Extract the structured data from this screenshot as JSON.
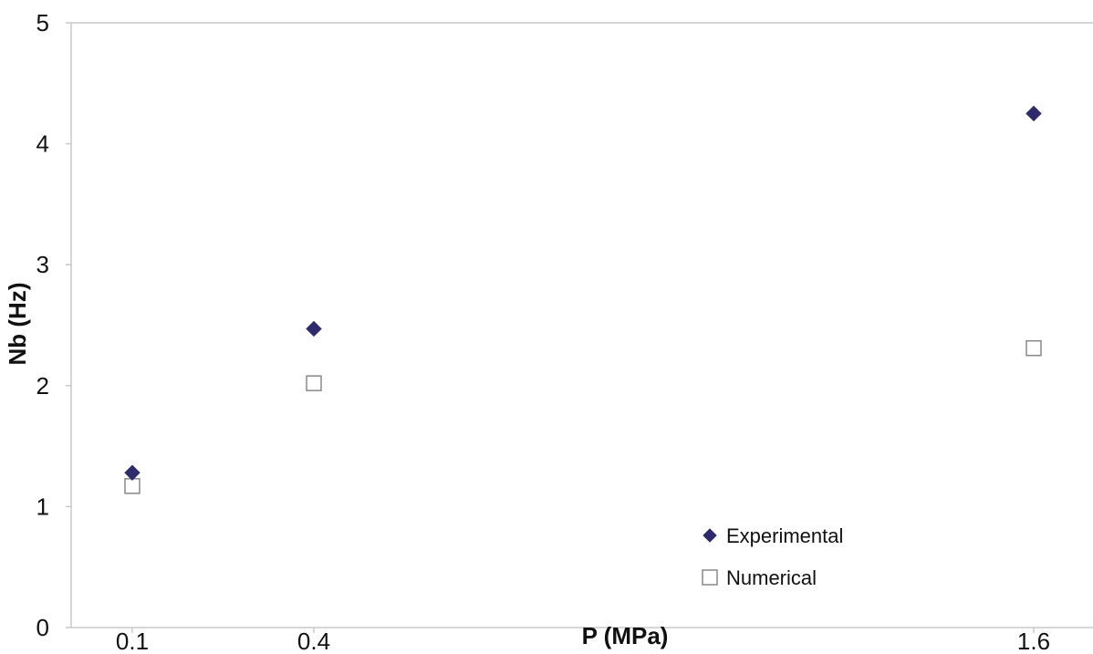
{
  "chart_data": {
    "type": "scatter",
    "title": "",
    "xlabel": "P (MPa)",
    "ylabel": "Nb (Hz)",
    "x_categories": [
      "0.1",
      "0.4",
      "1.6"
    ],
    "ylim": [
      0,
      5
    ],
    "y_ticks": [
      "0",
      "1",
      "2",
      "3",
      "4",
      "5"
    ],
    "grid": false,
    "legend_position": "bottom-center",
    "series": [
      {
        "name": "Experimental",
        "marker": "filled-diamond",
        "color": "#2e2a6b",
        "points": [
          {
            "x": "0.1",
            "y": 1.28
          },
          {
            "x": "0.4",
            "y": 2.47
          },
          {
            "x": "1.6",
            "y": 4.25
          }
        ]
      },
      {
        "name": "Numerical",
        "marker": "open-square",
        "color": "#888888",
        "points": [
          {
            "x": "0.1",
            "y": 1.17
          },
          {
            "x": "0.4",
            "y": 2.02
          },
          {
            "x": "1.6",
            "y": 2.31
          }
        ]
      }
    ]
  }
}
